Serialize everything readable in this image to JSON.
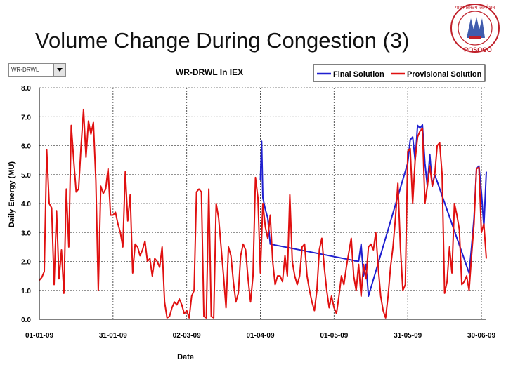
{
  "slide": {
    "title": "Volume Change During Congestion (3)"
  },
  "logo": {
    "text": "पावर सिस्टम ऑपरेशन",
    "acronym": "POSOCO"
  },
  "selector": {
    "value": "WR-DRWL"
  },
  "chart_data": {
    "type": "line",
    "title": "WR-DRWL In IEX",
    "xlabel": "Date",
    "ylabel": "Daily Energy (MU)",
    "ylim": [
      0,
      8
    ],
    "yticks": [
      "0.0",
      "1.0",
      "2.0",
      "3.0",
      "4.0",
      "5.0",
      "6.0",
      "7.0",
      "8.0"
    ],
    "xticks": [
      {
        "day": 0,
        "label": "01-01-09"
      },
      {
        "day": 30,
        "label": "31-01-09"
      },
      {
        "day": 60,
        "label": "02-03-09"
      },
      {
        "day": 90,
        "label": "01-04-09"
      },
      {
        "day": 120,
        "label": "01-05-09"
      },
      {
        "day": 150,
        "label": "31-05-09"
      },
      {
        "day": 180,
        "label": "30-06-09"
      }
    ],
    "grid": "dotted",
    "legend_position": "top-right",
    "series": [
      {
        "name": "Final Solution",
        "color": "#1f1fd0",
        "points": [
          [
            90,
            4.8
          ],
          [
            90.5,
            6.15
          ],
          [
            91,
            4.2
          ],
          [
            92,
            3.8
          ],
          [
            93,
            3.5
          ],
          [
            94,
            2.6
          ],
          [
            130,
            2.0
          ],
          [
            131,
            2.6
          ],
          [
            132,
            1.5
          ],
          [
            133,
            1.9
          ],
          [
            134,
            0.8
          ],
          [
            150,
            5.4
          ],
          [
            151,
            6.2
          ],
          [
            152,
            6.3
          ],
          [
            153,
            5.5
          ],
          [
            154,
            6.7
          ],
          [
            155,
            6.6
          ],
          [
            156,
            6.72
          ],
          [
            157,
            5.4
          ],
          [
            158,
            4.6
          ],
          [
            159,
            5.7
          ],
          [
            160,
            4.6
          ],
          [
            161,
            5.0
          ],
          [
            175,
            1.6
          ],
          [
            176,
            2.5
          ],
          [
            177,
            3.5
          ],
          [
            178,
            5.2
          ],
          [
            179,
            5.3
          ],
          [
            180,
            4.4
          ],
          [
            181,
            3.2
          ],
          [
            182,
            5.1
          ]
        ]
      },
      {
        "name": "Provisional Solution",
        "color": "#e01010",
        "points": [
          [
            0,
            1.35
          ],
          [
            1,
            1.45
          ],
          [
            2,
            1.65
          ],
          [
            3,
            5.85
          ],
          [
            4,
            4.0
          ],
          [
            5,
            3.85
          ],
          [
            6,
            1.2
          ],
          [
            7,
            3.75
          ],
          [
            8,
            1.4
          ],
          [
            9,
            2.4
          ],
          [
            10,
            0.9
          ],
          [
            11,
            4.5
          ],
          [
            12,
            2.5
          ],
          [
            13,
            6.7
          ],
          [
            14,
            5.5
          ],
          [
            15,
            4.4
          ],
          [
            16,
            4.5
          ],
          [
            17,
            6.0
          ],
          [
            18,
            7.25
          ],
          [
            19,
            5.6
          ],
          [
            20,
            6.85
          ],
          [
            21,
            6.4
          ],
          [
            22,
            6.8
          ],
          [
            23,
            4.8
          ],
          [
            24,
            1.0
          ],
          [
            25,
            4.6
          ],
          [
            26,
            4.35
          ],
          [
            27,
            4.5
          ],
          [
            28,
            5.2
          ],
          [
            29,
            3.6
          ],
          [
            30,
            3.6
          ],
          [
            31,
            3.7
          ],
          [
            32,
            3.3
          ],
          [
            33,
            3.0
          ],
          [
            34,
            2.5
          ],
          [
            35,
            5.1
          ],
          [
            36,
            3.4
          ],
          [
            37,
            4.3
          ],
          [
            38,
            1.6
          ],
          [
            39,
            2.6
          ],
          [
            40,
            2.5
          ],
          [
            41,
            2.2
          ],
          [
            42,
            2.4
          ],
          [
            43,
            2.7
          ],
          [
            44,
            2.0
          ],
          [
            45,
            2.1
          ],
          [
            46,
            1.5
          ],
          [
            47,
            2.1
          ],
          [
            48,
            2.0
          ],
          [
            49,
            1.8
          ],
          [
            50,
            2.5
          ],
          [
            51,
            0.6
          ],
          [
            52,
            0.05
          ],
          [
            53,
            0.1
          ],
          [
            54,
            0.4
          ],
          [
            55,
            0.6
          ],
          [
            56,
            0.5
          ],
          [
            57,
            0.7
          ],
          [
            58,
            0.5
          ],
          [
            59,
            0.2
          ],
          [
            60,
            0.3
          ],
          [
            61,
            0.05
          ],
          [
            62,
            0.8
          ],
          [
            63,
            1.0
          ],
          [
            64,
            4.4
          ],
          [
            65,
            4.5
          ],
          [
            66,
            4.4
          ],
          [
            67,
            0.1
          ],
          [
            68,
            0.05
          ],
          [
            69,
            4.5
          ],
          [
            70,
            0.1
          ],
          [
            71,
            0.05
          ],
          [
            72,
            4.0
          ],
          [
            73,
            3.5
          ],
          [
            74,
            2.5
          ],
          [
            75,
            1.5
          ],
          [
            76,
            0.4
          ],
          [
            77,
            2.5
          ],
          [
            78,
            2.2
          ],
          [
            79,
            1.3
          ],
          [
            80,
            0.6
          ],
          [
            81,
            0.9
          ],
          [
            82,
            2.2
          ],
          [
            83,
            2.6
          ],
          [
            84,
            2.4
          ],
          [
            85,
            1.4
          ],
          [
            86,
            0.6
          ],
          [
            87,
            1.5
          ],
          [
            88,
            4.9
          ],
          [
            89,
            4.2
          ],
          [
            90,
            1.6
          ],
          [
            91,
            4.0
          ],
          [
            92,
            3.2
          ],
          [
            93,
            2.8
          ],
          [
            94,
            3.6
          ],
          [
            95,
            2.0
          ],
          [
            96,
            1.2
          ],
          [
            97,
            1.5
          ],
          [
            98,
            1.5
          ],
          [
            99,
            1.3
          ],
          [
            100,
            2.2
          ],
          [
            101,
            1.5
          ],
          [
            102,
            4.3
          ],
          [
            103,
            2.0
          ],
          [
            104,
            1.5
          ],
          [
            105,
            1.2
          ],
          [
            106,
            1.5
          ],
          [
            107,
            2.5
          ],
          [
            108,
            2.6
          ],
          [
            109,
            1.5
          ],
          [
            110,
            1.0
          ],
          [
            111,
            0.6
          ],
          [
            112,
            0.3
          ],
          [
            113,
            1.0
          ],
          [
            114,
            2.4
          ],
          [
            115,
            2.8
          ],
          [
            116,
            1.8
          ],
          [
            117,
            1.0
          ],
          [
            118,
            0.4
          ],
          [
            119,
            0.8
          ],
          [
            120,
            0.4
          ],
          [
            121,
            0.2
          ],
          [
            122,
            0.8
          ],
          [
            123,
            1.5
          ],
          [
            124,
            1.2
          ],
          [
            125,
            1.8
          ],
          [
            126,
            2.3
          ],
          [
            127,
            2.8
          ],
          [
            128,
            1.5
          ],
          [
            129,
            1.0
          ],
          [
            130,
            1.9
          ],
          [
            131,
            0.8
          ],
          [
            132,
            1.9
          ],
          [
            133,
            1.4
          ],
          [
            134,
            2.5
          ],
          [
            135,
            2.6
          ],
          [
            136,
            2.4
          ],
          [
            137,
            3.0
          ],
          [
            138,
            1.8
          ],
          [
            139,
            0.8
          ],
          [
            140,
            0.3
          ],
          [
            141,
            0.05
          ],
          [
            142,
            0.8
          ],
          [
            143,
            1.8
          ],
          [
            144,
            2.5
          ],
          [
            145,
            3.5
          ],
          [
            146,
            4.7
          ],
          [
            147,
            2.5
          ],
          [
            148,
            1.0
          ],
          [
            149,
            1.2
          ],
          [
            150,
            5.8
          ],
          [
            151,
            5.9
          ],
          [
            152,
            4.0
          ],
          [
            153,
            5.5
          ],
          [
            154,
            6.3
          ],
          [
            155,
            6.5
          ],
          [
            156,
            6.6
          ],
          [
            157,
            4.0
          ],
          [
            158,
            4.6
          ],
          [
            159,
            5.3
          ],
          [
            160,
            4.6
          ],
          [
            161,
            5.0
          ],
          [
            162,
            6.0
          ],
          [
            163,
            6.1
          ],
          [
            164,
            5.0
          ],
          [
            165,
            0.9
          ],
          [
            166,
            1.3
          ],
          [
            167,
            2.5
          ],
          [
            168,
            1.6
          ],
          [
            169,
            4.0
          ],
          [
            170,
            3.6
          ],
          [
            171,
            3.1
          ],
          [
            172,
            1.2
          ],
          [
            173,
            1.3
          ],
          [
            174,
            1.5
          ],
          [
            175,
            1.0
          ],
          [
            176,
            2.2
          ],
          [
            177,
            3.3
          ],
          [
            178,
            5.2
          ],
          [
            179,
            5.25
          ],
          [
            180,
            3.0
          ],
          [
            181,
            3.3
          ],
          [
            182,
            2.1
          ]
        ]
      }
    ]
  }
}
